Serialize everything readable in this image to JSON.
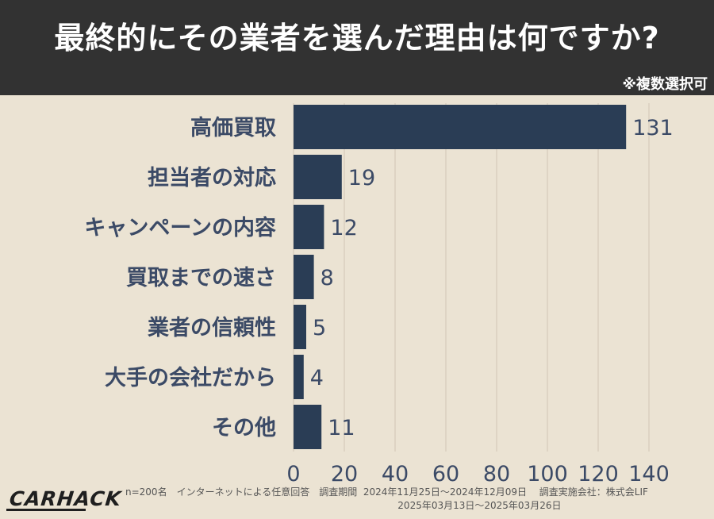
{
  "header": {
    "title": "最終的にその業者を選んだ理由は何ですか?",
    "note": "※複数選択可"
  },
  "colors": {
    "background": "#ebe3d3",
    "header": "#323232",
    "bar": "#2a3d55",
    "label": "#3b4a66",
    "grid": "#d9d0bf"
  },
  "chart_data": {
    "type": "bar",
    "orientation": "horizontal",
    "categories": [
      "高価買取",
      "担当者の対応",
      "キャンペーンの内容",
      "買取までの速さ",
      "業者の信頼性",
      "大手の会社だから",
      "その他"
    ],
    "values": [
      131,
      19,
      12,
      8,
      5,
      4,
      11
    ],
    "xlim": [
      0,
      140
    ],
    "xticks": [
      "0",
      "20",
      "40",
      "60",
      "80",
      "100",
      "120",
      "140"
    ],
    "grid": true,
    "data_labels": true
  },
  "footer": {
    "line1": "n=200名　インターネットによる任意回答　調査期間  2024年11月25日～2024年12月09日　 調査実施会社：株式会LIF",
    "line2": "                                                                                          2025年03月13日～2025年03月26日",
    "logo": "CARHACK"
  }
}
